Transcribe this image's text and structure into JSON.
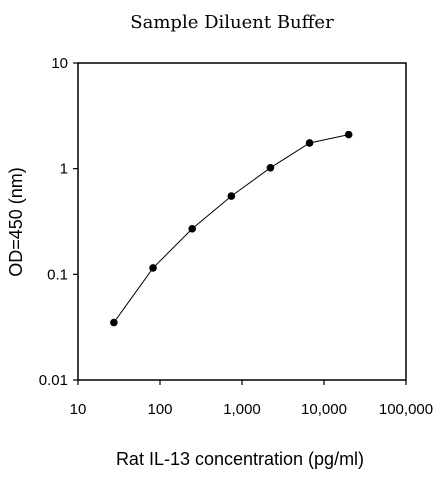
{
  "chart_data": {
    "type": "line",
    "title": "Sample Diluent Buffer",
    "xlabel": "Rat IL-13 concentration (pg/ml)",
    "ylabel": "OD=450 (nm)",
    "x_scale": "log",
    "y_scale": "log",
    "xlim": [
      10,
      100000
    ],
    "ylim": [
      0.01,
      10
    ],
    "x_ticks": [
      "10",
      "100",
      "1,000",
      "10,000",
      "100,000"
    ],
    "y_ticks": [
      "0.01",
      "0.1",
      "1",
      "10"
    ],
    "grid": false,
    "series": [
      {
        "x": [
          27.4,
          82.3,
          247,
          741,
          2222,
          6667,
          20000
        ],
        "y": [
          0.035,
          0.115,
          0.27,
          0.55,
          1.02,
          1.75,
          2.1
        ]
      }
    ]
  }
}
